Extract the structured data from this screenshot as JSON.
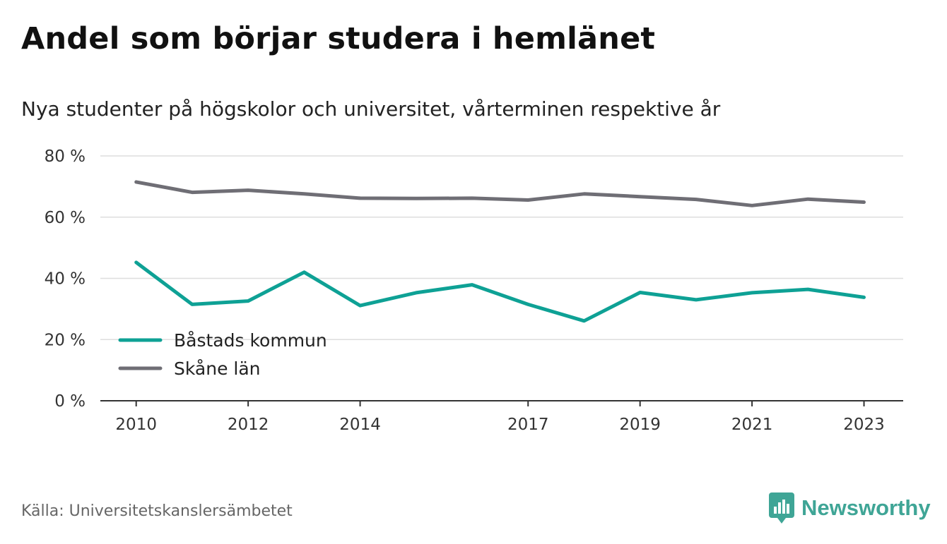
{
  "title": "Andel som börjar studera i hemlänet",
  "subtitle": "Nya studenter på högskolor och universitet, vårterminen respektive år",
  "source": "Källa: Universitetskanslersämbetet",
  "brand": {
    "name": "Newsworthy",
    "icon": "newsworthy-logo-icon",
    "color": "#3fa596"
  },
  "chart_data": {
    "type": "line",
    "title": "Andel som börjar studera i hemlänet",
    "subtitle": "Nya studenter på högskolor och universitet, vårterminen respektive år",
    "x": [
      2010,
      2011,
      2012,
      2013,
      2014,
      2015,
      2016,
      2017,
      2018,
      2019,
      2020,
      2021,
      2022,
      2023
    ],
    "x_tick_labels": [
      "2010",
      "2012",
      "2014",
      "2017",
      "2019",
      "2021",
      "2023"
    ],
    "ylim": [
      0,
      80
    ],
    "y_ticks": [
      0,
      20,
      40,
      60,
      80
    ],
    "y_tick_labels": [
      "0 %",
      "20 %",
      "40 %",
      "60 %",
      "80 %"
    ],
    "grid": true,
    "legend_position": "bottom-left",
    "series": [
      {
        "name": "Båstads kommun",
        "color": "#0ea195",
        "values": [
          45.2,
          31.5,
          32.6,
          42.0,
          31.1,
          35.3,
          37.9,
          31.5,
          26.1,
          35.4,
          33.0,
          35.3,
          36.4,
          33.8
        ]
      },
      {
        "name": "Skåne län",
        "color": "#6f6e75",
        "values": [
          71.5,
          68.1,
          68.8,
          67.6,
          66.2,
          66.1,
          66.2,
          65.6,
          67.6,
          66.7,
          65.8,
          63.8,
          65.9,
          64.9
        ]
      }
    ]
  }
}
